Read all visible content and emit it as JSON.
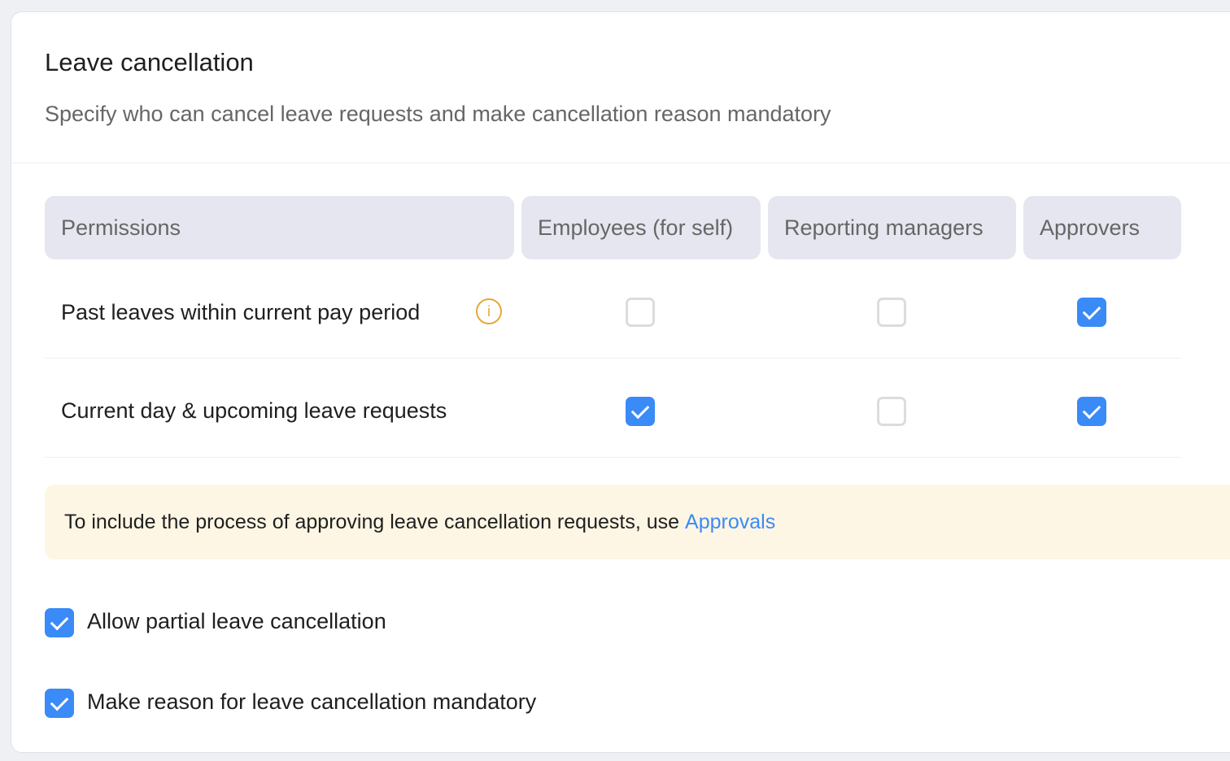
{
  "title": "Leave cancellation",
  "subtitle": "Specify who can cancel leave requests and make cancellation reason mandatory",
  "table": {
    "headers": [
      "Permissions",
      "Employees (for self)",
      "Reporting managers",
      "Approvers"
    ],
    "rows": [
      {
        "label": "Past leaves within current pay period",
        "has_info": true,
        "employees": false,
        "managers": false,
        "approvers": true
      },
      {
        "label": "Current day & upcoming leave requests",
        "has_info": false,
        "employees": true,
        "managers": false,
        "approvers": true
      }
    ]
  },
  "banner": {
    "text": "To include the process of approving leave cancellation requests, use",
    "link": "Approvals"
  },
  "options": [
    {
      "label": "Allow partial leave cancellation",
      "checked": true
    },
    {
      "label": "Make reason for leave cancellation mandatory",
      "checked": true
    }
  ],
  "colors": {
    "accent": "#3a8af7",
    "info": "#e5a93a",
    "banner_bg": "#fdf6e4",
    "header_bg": "#e5e6ef"
  }
}
